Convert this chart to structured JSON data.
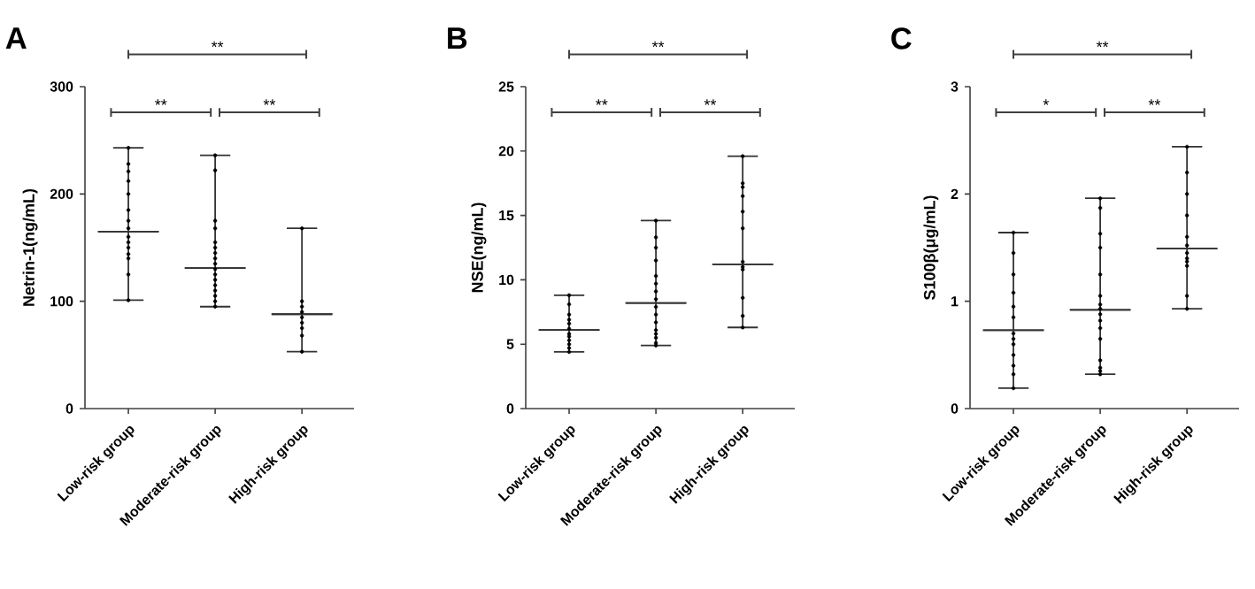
{
  "chart_data": [
    {
      "type": "box",
      "title": "A",
      "ylabel": "Netrin-1(ng/mL)",
      "categories": [
        "Low-risk group",
        "Moderate-risk group",
        "High-risk group"
      ],
      "ylim": [
        0,
        300
      ],
      "yticks": [
        0,
        100,
        200,
        300
      ],
      "annotations": [
        "**",
        "**",
        "**"
      ],
      "series": [
        {
          "color": "#333333",
          "boxes": [
            {
              "low": 101,
              "q1": 165,
              "median": 165,
              "q3": 165,
              "high": 243
            },
            {
              "low": 95,
              "q1": 131,
              "median": 131,
              "q3": 131,
              "high": 236
            },
            {
              "low": 53,
              "q1": 88,
              "median": 88,
              "q3": 88,
              "high": 168
            }
          ]
        },
        {
          "type": "scatter",
          "color": "#000000",
          "marker": "circle",
          "x": [
            "Low-risk group",
            "Low-risk group",
            "Low-risk group",
            "Low-risk group",
            "Low-risk group",
            "Low-risk group",
            "Low-risk group",
            "Low-risk group",
            "Low-risk group",
            "Low-risk group",
            "Low-risk group",
            "Low-risk group",
            "Low-risk group",
            "Low-risk group",
            "Low-risk group",
            "Moderate-risk group",
            "Moderate-risk group",
            "Moderate-risk group",
            "Moderate-risk group",
            "Moderate-risk group",
            "Moderate-risk group",
            "Moderate-risk group",
            "Moderate-risk group",
            "Moderate-risk group",
            "Moderate-risk group",
            "Moderate-risk group",
            "Moderate-risk group",
            "Moderate-risk group",
            "Moderate-risk group",
            "Moderate-risk group",
            "Moderate-risk group",
            "Moderate-risk group",
            "High-risk group",
            "High-risk group",
            "High-risk group",
            "High-risk group",
            "High-risk group",
            "High-risk group",
            "High-risk group",
            "High-risk group",
            "High-risk group"
          ],
          "values": [
            243,
            228,
            221,
            212,
            200,
            185,
            175,
            168,
            160,
            155,
            150,
            144,
            140,
            125,
            101,
            236,
            222,
            175,
            168,
            155,
            150,
            145,
            140,
            135,
            130,
            125,
            120,
            115,
            110,
            105,
            100,
            95,
            168,
            100,
            95,
            90,
            85,
            80,
            75,
            68,
            53
          ]
        }
      ]
    },
    {
      "type": "box",
      "title": "B",
      "ylabel": "NSE(ng/mL)",
      "categories": [
        "Low-risk group",
        "Moderate-risk group",
        "High-risk group"
      ],
      "ylim": [
        0,
        25
      ],
      "yticks": [
        0,
        5,
        10,
        15,
        20,
        25
      ],
      "annotations": [
        "**",
        "**",
        "**"
      ],
      "series": [
        {
          "color": "#333333",
          "boxes": [
            {
              "low": 4.4,
              "q1": 6.1,
              "median": 6.1,
              "q3": 6.1,
              "high": 8.8
            },
            {
              "low": 4.9,
              "q1": 8.2,
              "median": 8.2,
              "q3": 8.2,
              "high": 14.6
            },
            {
              "low": 6.3,
              "q1": 11.2,
              "median": 11.2,
              "q3": 11.2,
              "high": 19.6
            }
          ]
        },
        {
          "type": "scatter",
          "color": "#000000",
          "marker": "circle",
          "x": [
            "Low-risk group",
            "Low-risk group",
            "Low-risk group",
            "Low-risk group",
            "Low-risk group",
            "Low-risk group",
            "Low-risk group",
            "Low-risk group",
            "Low-risk group",
            "Low-risk group",
            "Low-risk group",
            "Low-risk group",
            "Moderate-risk group",
            "Moderate-risk group",
            "Moderate-risk group",
            "Moderate-risk group",
            "Moderate-risk group",
            "Moderate-risk group",
            "Moderate-risk group",
            "Moderate-risk group",
            "Moderate-risk group",
            "Moderate-risk group",
            "Moderate-risk group",
            "Moderate-risk group",
            "Moderate-risk group",
            "Moderate-risk group",
            "Moderate-risk group",
            "Moderate-risk group",
            "High-risk group",
            "High-risk group",
            "High-risk group",
            "High-risk group",
            "High-risk group",
            "High-risk group",
            "High-risk group",
            "High-risk group",
            "High-risk group",
            "High-risk group",
            "High-risk group",
            "High-risk group"
          ],
          "values": [
            8.8,
            8.1,
            7.3,
            6.9,
            6.6,
            6.2,
            5.8,
            5.6,
            5.3,
            5.0,
            4.7,
            4.4,
            14.6,
            13.3,
            12.5,
            11.5,
            10.3,
            9.7,
            9.1,
            8.5,
            7.9,
            7.3,
            6.7,
            6.1,
            5.8,
            5.5,
            5.1,
            4.9,
            19.6,
            17.5,
            17.2,
            16.5,
            15.3,
            14.0,
            11.4,
            11.0,
            10.8,
            8.6,
            7.2,
            6.3
          ]
        }
      ]
    },
    {
      "type": "box",
      "title": "C",
      "ylabel": "S100β(μg/mL)",
      "categories": [
        "Low-risk group",
        "Moderate-risk group",
        "High-risk group"
      ],
      "ylim": [
        0,
        3
      ],
      "yticks": [
        0,
        1,
        2,
        3
      ],
      "annotations": [
        "*",
        "**",
        "**"
      ],
      "series": [
        {
          "color": "#333333",
          "boxes": [
            {
              "low": 0.19,
              "q1": 0.73,
              "median": 0.73,
              "q3": 0.73,
              "high": 1.64
            },
            {
              "low": 0.32,
              "q1": 0.92,
              "median": 0.92,
              "q3": 0.92,
              "high": 1.96
            },
            {
              "low": 0.93,
              "q1": 1.49,
              "median": 1.49,
              "q3": 1.49,
              "high": 2.44
            }
          ]
        },
        {
          "type": "scatter",
          "color": "#000000",
          "marker": "circle",
          "x": [
            "Low-risk group",
            "Low-risk group",
            "Low-risk group",
            "Low-risk group",
            "Low-risk group",
            "Low-risk group",
            "Low-risk group",
            "Low-risk group",
            "Low-risk group",
            "Low-risk group",
            "Low-risk group",
            "Low-risk group",
            "Low-risk group",
            "Moderate-risk group",
            "Moderate-risk group",
            "Moderate-risk group",
            "Moderate-risk group",
            "Moderate-risk group",
            "Moderate-risk group",
            "Moderate-risk group",
            "Moderate-risk group",
            "Moderate-risk group",
            "Moderate-risk group",
            "Moderate-risk group",
            "Moderate-risk group",
            "Moderate-risk group",
            "Moderate-risk group",
            "Moderate-risk group",
            "Moderate-risk group",
            "High-risk group",
            "High-risk group",
            "High-risk group",
            "High-risk group",
            "High-risk group",
            "High-risk group",
            "High-risk group",
            "High-risk group",
            "High-risk group",
            "High-risk group",
            "High-risk group",
            "High-risk group"
          ],
          "values": [
            1.64,
            1.45,
            1.25,
            1.08,
            0.95,
            0.85,
            0.7,
            0.65,
            0.6,
            0.5,
            0.4,
            0.32,
            0.19,
            1.96,
            1.87,
            1.63,
            1.5,
            1.25,
            1.05,
            0.97,
            0.93,
            0.88,
            0.82,
            0.75,
            0.65,
            0.45,
            0.38,
            0.35,
            0.32,
            2.44,
            2.2,
            2.0,
            1.8,
            1.6,
            1.52,
            1.45,
            1.4,
            1.37,
            1.33,
            1.05,
            0.93
          ]
        }
      ]
    }
  ]
}
